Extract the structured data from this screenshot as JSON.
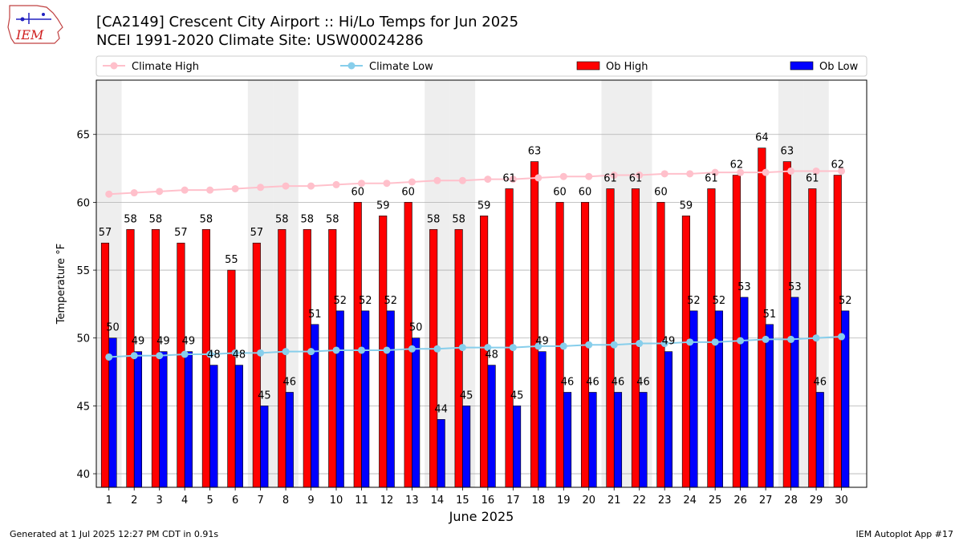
{
  "title": "[CA2149] Crescent City Airport :: Hi/Lo Temps for Jun 2025",
  "subtitle": "NCEI 1991-2020 Climate Site: USW00024286",
  "logo_text": "IEM",
  "footer_left": "Generated at 1 Jul 2025 12:27 PM CDT in 0.91s",
  "footer_right": "IEM Autoplot App #17",
  "colors": {
    "ob_high": "#ff0000",
    "ob_low": "#0000ff",
    "climate_high": "#ffc0cb",
    "climate_low": "#87ceeb",
    "weekend_shade": "#eeeeee",
    "grid": "#b0b0b0"
  },
  "chart_data": {
    "type": "bar",
    "xlabel": "June 2025",
    "ylabel": "Temperature °F",
    "ylim": [
      39,
      69
    ],
    "yticks": [
      40,
      45,
      50,
      55,
      60,
      65
    ],
    "grid": "horizontal",
    "legend_position": "top",
    "categories": [
      "1",
      "2",
      "3",
      "4",
      "5",
      "6",
      "7",
      "8",
      "9",
      "10",
      "11",
      "12",
      "13",
      "14",
      "15",
      "16",
      "17",
      "18",
      "19",
      "20",
      "21",
      "22",
      "23",
      "24",
      "25",
      "26",
      "27",
      "28",
      "29",
      "30"
    ],
    "shaded_days": [
      1,
      7,
      8,
      14,
      15,
      21,
      22,
      28,
      29
    ],
    "series": [
      {
        "name": "Climate High",
        "kind": "line",
        "values": [
          60.6,
          60.7,
          60.8,
          60.9,
          60.9,
          61.0,
          61.1,
          61.2,
          61.2,
          61.3,
          61.4,
          61.4,
          61.5,
          61.6,
          61.6,
          61.7,
          61.7,
          61.8,
          61.9,
          61.9,
          62.0,
          62.0,
          62.1,
          62.1,
          62.2,
          62.2,
          62.2,
          62.3,
          62.3,
          62.3
        ]
      },
      {
        "name": "Climate Low",
        "kind": "line",
        "values": [
          48.6,
          48.7,
          48.7,
          48.8,
          48.8,
          48.9,
          48.9,
          49.0,
          49.0,
          49.1,
          49.1,
          49.1,
          49.2,
          49.2,
          49.3,
          49.3,
          49.3,
          49.4,
          49.4,
          49.5,
          49.5,
          49.6,
          49.6,
          49.7,
          49.7,
          49.8,
          49.9,
          49.9,
          50.0,
          50.1
        ]
      },
      {
        "name": "Ob High",
        "kind": "bar",
        "values": [
          57,
          58,
          58,
          57,
          58,
          55,
          57,
          58,
          58,
          58,
          60,
          59,
          60,
          58,
          58,
          59,
          61,
          63,
          60,
          60,
          61,
          61,
          60,
          59,
          61,
          62,
          64,
          63,
          61,
          62
        ]
      },
      {
        "name": "Ob Low",
        "kind": "bar",
        "values": [
          50,
          49,
          49,
          49,
          48,
          48,
          45,
          46,
          51,
          52,
          52,
          52,
          50,
          44,
          45,
          48,
          45,
          49,
          46,
          46,
          46,
          46,
          49,
          52,
          52,
          53,
          51,
          53,
          46,
          52
        ]
      }
    ]
  }
}
